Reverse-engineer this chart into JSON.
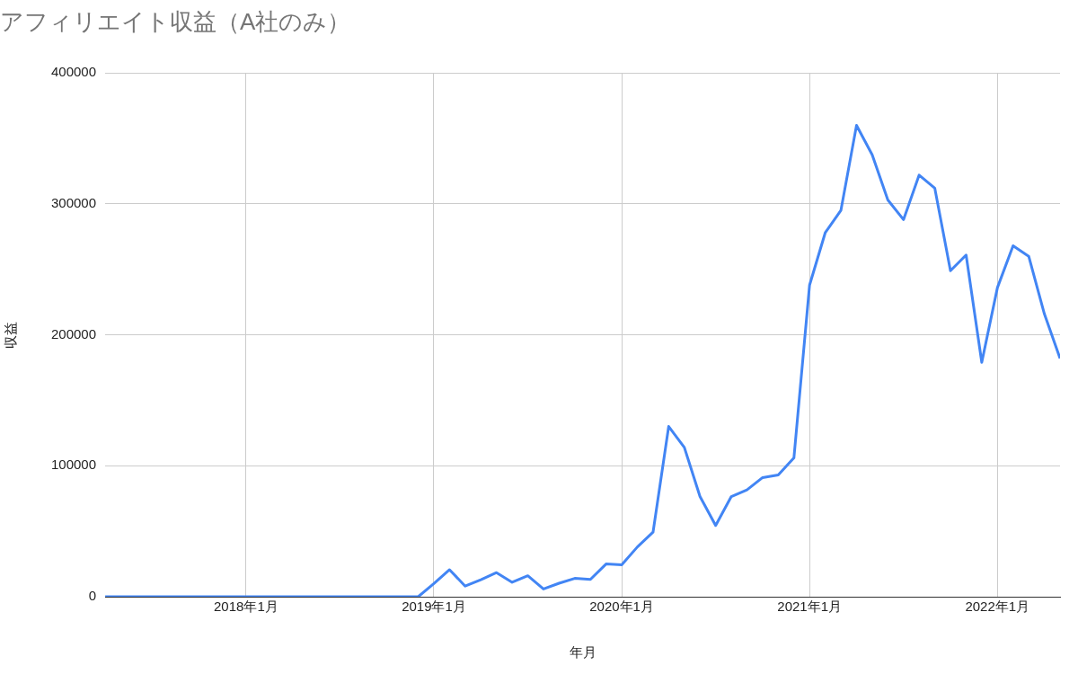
{
  "chart_data": {
    "type": "line",
    "title": "アフィリエイト収益（A社のみ）",
    "xlabel": "年月",
    "ylabel": "収益",
    "x": [
      "2017-04",
      "2017-05",
      "2017-06",
      "2017-07",
      "2017-08",
      "2017-09",
      "2017-10",
      "2017-11",
      "2017-12",
      "2018-01",
      "2018-02",
      "2018-03",
      "2018-04",
      "2018-05",
      "2018-06",
      "2018-07",
      "2018-08",
      "2018-09",
      "2018-10",
      "2018-11",
      "2018-12",
      "2019-01",
      "2019-02",
      "2019-03",
      "2019-04",
      "2019-05",
      "2019-06",
      "2019-07",
      "2019-08",
      "2019-09",
      "2019-10",
      "2019-11",
      "2019-12",
      "2020-01",
      "2020-02",
      "2020-03",
      "2020-04",
      "2020-05",
      "2020-06",
      "2020-07",
      "2020-08",
      "2020-09",
      "2020-10",
      "2020-11",
      "2020-12",
      "2021-01",
      "2021-02",
      "2021-03",
      "2021-04",
      "2021-05",
      "2021-06",
      "2021-07",
      "2021-08",
      "2021-09",
      "2021-10",
      "2021-11",
      "2021-12",
      "2022-01",
      "2022-02",
      "2022-03",
      "2022-04",
      "2022-05"
    ],
    "series": [
      {
        "color": "#4285f4",
        "values": [
          0,
          0,
          0,
          0,
          0,
          0,
          0,
          0,
          0,
          0,
          0,
          0,
          0,
          0,
          0,
          0,
          0,
          0,
          0,
          0,
          0,
          10000,
          20600,
          8100,
          13000,
          18400,
          11000,
          16000,
          5900,
          10300,
          14000,
          13200,
          25000,
          24300,
          38000,
          49300,
          130000,
          114000,
          76500,
          54400,
          76500,
          81600,
          91000,
          93000,
          106000,
          238000,
          278000,
          295000,
          360000,
          337500,
          303000,
          288000,
          322000,
          312000,
          249000,
          261000,
          179000,
          236000,
          268000,
          260000,
          216000,
          182000
        ]
      }
    ],
    "xlim": [
      "2017-04",
      "2022-05"
    ],
    "xticks": [
      {
        "value": "2018-01",
        "label": "2018年1月"
      },
      {
        "value": "2019-01",
        "label": "2019年1月"
      },
      {
        "value": "2020-01",
        "label": "2020年1月"
      },
      {
        "value": "2021-01",
        "label": "2021年1月"
      },
      {
        "value": "2022-01",
        "label": "2022年1月"
      }
    ],
    "ylim": [
      0,
      400000
    ],
    "yticks": [
      0,
      100000,
      200000,
      300000,
      400000
    ],
    "grid": true,
    "legend": false,
    "marker": "none",
    "line_style": "solid"
  }
}
